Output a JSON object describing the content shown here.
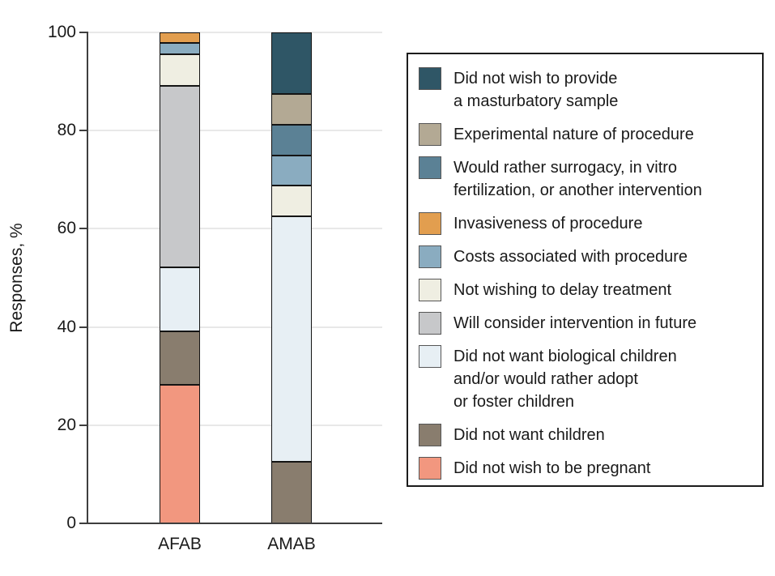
{
  "chart_data": {
    "type": "bar",
    "stacked": true,
    "title": "",
    "xlabel": "",
    "ylabel": "Responses, %",
    "ylim": [
      0,
      100
    ],
    "y_ticks": [
      0,
      20,
      40,
      60,
      80,
      100
    ],
    "categories": [
      "AFAB",
      "AMAB"
    ],
    "grid": "horizontal",
    "legend_position": "right",
    "axis_color": "#3e3e3e",
    "gridline_color": "#e8e8e8",
    "series": [
      {
        "name": "Did not wish to provide a masturbatory sample",
        "label_lines": [
          "Did not wish to provide",
          "a masturbatory sample"
        ],
        "color": "#2F5666",
        "values": [
          0,
          12.5
        ]
      },
      {
        "name": "Experimental nature of procedure",
        "label_lines": [
          "Experimental nature of procedure"
        ],
        "color": "#B3A994",
        "values": [
          0,
          6.25
        ]
      },
      {
        "name": "Would rather surrogacy, in vitro fertilization, or another intervention",
        "label_lines": [
          "Would rather surrogacy, in vitro",
          "fertilization, or another intervention"
        ],
        "color": "#5B8195",
        "values": [
          0,
          6.25
        ]
      },
      {
        "name": "Invasiveness of procedure",
        "label_lines": [
          "Invasiveness of procedure"
        ],
        "color": "#E29E4F",
        "values": [
          2.2,
          0
        ]
      },
      {
        "name": "Costs associated with procedure",
        "label_lines": [
          "Costs associated with procedure"
        ],
        "color": "#8AACC0",
        "values": [
          2.2,
          6.25
        ]
      },
      {
        "name": "Not wishing to delay treatment",
        "label_lines": [
          "Not wishing to delay treatment"
        ],
        "color": "#EFEEE2",
        "values": [
          6.5,
          6.25
        ]
      },
      {
        "name": "Will consider intervention in future",
        "label_lines": [
          "Will consider intervention in future"
        ],
        "color": "#C7C8CA",
        "values": [
          37.0,
          0
        ]
      },
      {
        "name": "Did not want biological children and/or would rather adopt or foster children",
        "label_lines": [
          "Did not want biological children",
          "and/or would rather adopt",
          "or foster children"
        ],
        "color": "#E7EFF4",
        "values": [
          13.0,
          50.0
        ]
      },
      {
        "name": "Did not want children",
        "label_lines": [
          "Did not want children"
        ],
        "color": "#897D6E",
        "values": [
          10.9,
          12.5
        ]
      },
      {
        "name": "Did not wish to be pregnant",
        "label_lines": [
          "Did not wish to be pregnant"
        ],
        "color": "#F2977F",
        "values": [
          28.3,
          0
        ]
      }
    ]
  }
}
